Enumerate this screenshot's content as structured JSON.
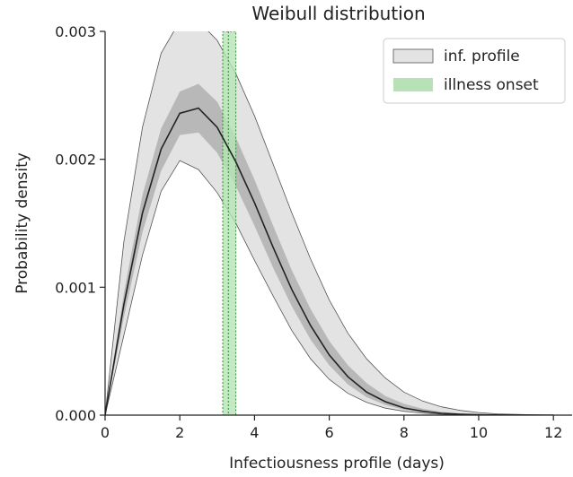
{
  "chart_data": {
    "type": "area",
    "title": "Weibull distribution",
    "xlabel": "Infectiousness profile (days)",
    "ylabel": "Probability density",
    "xlim": [
      0,
      12.5
    ],
    "ylim": [
      0,
      0.003
    ],
    "xticks": [
      "0",
      "2",
      "4",
      "6",
      "8",
      "10",
      "12"
    ],
    "yticks": [
      "0.000",
      "0.001",
      "0.002",
      "0.003"
    ],
    "grid": false,
    "legend_placement": "top-right",
    "legend": [
      {
        "label": "inf. profile",
        "color": "#d9d9d9"
      },
      {
        "label": "illness onset",
        "color": "#b7e2b7"
      }
    ],
    "x": [
      0,
      0.5,
      1,
      1.5,
      2,
      2.5,
      3,
      3.5,
      4,
      4.5,
      5,
      5.5,
      6,
      6.5,
      7,
      7.5,
      8,
      8.5,
      9,
      9.5,
      10,
      10.5,
      11,
      11.5,
      12
    ],
    "series": [
      {
        "role": "median",
        "values": [
          0,
          0.00086,
          0.00158,
          0.00208,
          0.00236,
          0.0024,
          0.00225,
          0.00198,
          0.00166,
          0.00131,
          0.00098,
          0.0007,
          0.00047,
          0.0003,
          0.00018,
          0.000105,
          5.6e-05,
          3e-05,
          1.4e-05,
          7e-06,
          3e-06,
          1.2e-06,
          5e-07,
          2e-07,
          0
        ]
      },
      {
        "role": "inner-band-upper",
        "values": [
          0,
          0.00095,
          0.00172,
          0.00224,
          0.00253,
          0.00259,
          0.00245,
          0.00217,
          0.00184,
          0.00148,
          0.00113,
          0.00083,
          0.00058,
          0.00039,
          0.00025,
          0.00015,
          8.8e-05,
          5e-05,
          2.6e-05,
          1.3e-05,
          6e-06,
          3e-06,
          1.2e-06,
          5e-07,
          0
        ]
      },
      {
        "role": "inner-band-lower",
        "values": [
          0,
          0.00076,
          0.00143,
          0.00191,
          0.00219,
          0.00221,
          0.00205,
          0.00179,
          0.00148,
          0.00115,
          0.00085,
          0.00059,
          0.00039,
          0.00024,
          0.00014,
          8e-05,
          4.2e-05,
          2e-05,
          1e-05,
          5e-06,
          2e-06,
          1e-06,
          4e-07,
          1e-07,
          0
        ]
      },
      {
        "role": "outer-band-upper",
        "values": [
          0,
          0.00135,
          0.00225,
          0.00283,
          0.00308,
          0.00308,
          0.00293,
          0.00267,
          0.00234,
          0.00196,
          0.00158,
          0.00122,
          0.0009,
          0.00064,
          0.00044,
          0.00029,
          0.00018,
          0.00011,
          6.5e-05,
          3.7e-05,
          2e-05,
          1e-05,
          5.5e-06,
          3e-06,
          0
        ]
      },
      {
        "role": "outer-band-lower",
        "values": [
          0,
          0.00062,
          0.00125,
          0.00175,
          0.00199,
          0.00192,
          0.00174,
          0.0015,
          0.00121,
          0.00093,
          0.00066,
          0.00044,
          0.00028,
          0.00017,
          0.0001,
          5.5e-05,
          3e-05,
          1.5e-05,
          7e-06,
          3e-06,
          1.3e-06,
          5e-07,
          2e-07,
          1e-07,
          0
        ]
      }
    ],
    "illness_onset": {
      "x_start": 3.15,
      "x_end": 3.5,
      "x_median": 3.3
    }
  }
}
